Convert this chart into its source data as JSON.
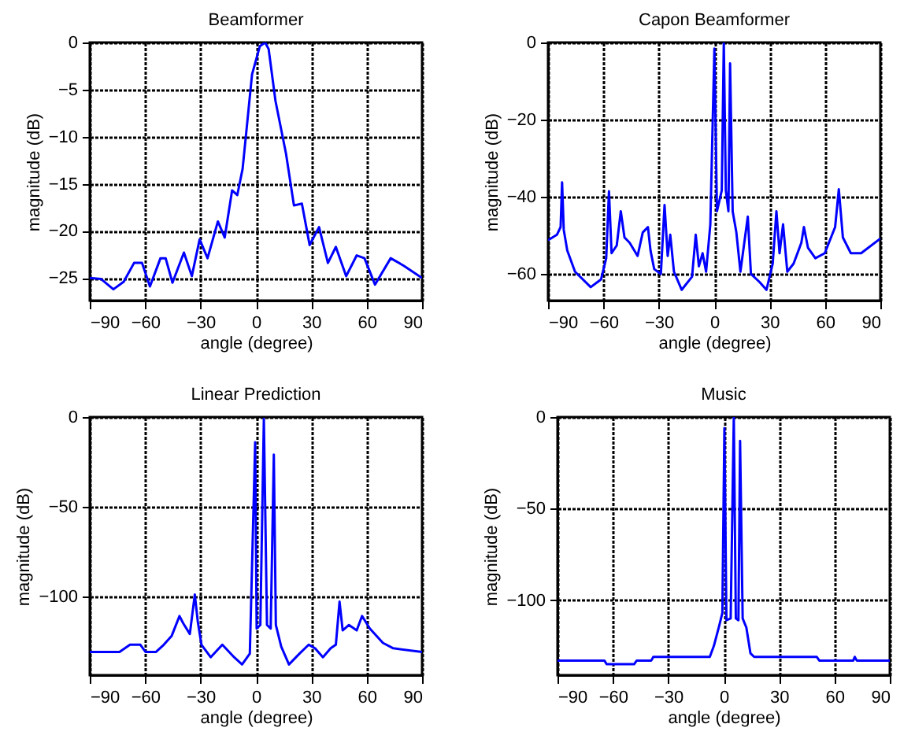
{
  "chart_data": [
    {
      "type": "line",
      "title": "Beamformer",
      "xlabel": "angle (degree)",
      "ylabel": "magnitude (dB)",
      "xlim": [
        -90,
        90
      ],
      "xticks": [
        -90,
        -60,
        -30,
        0,
        30,
        60,
        90
      ],
      "ylim": [
        -27.4,
        0
      ],
      "yticks": [
        -25,
        -20,
        -15,
        -10,
        -5,
        0
      ],
      "grid": true,
      "x": [
        -90,
        -84,
        -77.2,
        -71.6,
        -66,
        -61.7,
        -57.4,
        -51.7,
        -48.9,
        -45.2,
        -39,
        -34.7,
        -30.5,
        -26.2,
        -20.6,
        -16.9,
        -12.9,
        -10.1,
        -7.2,
        -4.4,
        -2.1,
        2.1,
        5,
        6.9,
        10.6,
        16.3,
        20.6,
        24.9,
        29.1,
        34.2,
        39,
        43.3,
        48.9,
        54.6,
        58.8,
        64.5,
        73,
        80.1,
        90
      ],
      "series": [
        {
          "color": "#0000ff",
          "values": [
            -25,
            -25.1,
            -26.2,
            -25.4,
            -23.4,
            -23.4,
            -25.9,
            -22.9,
            -22.9,
            -25.5,
            -22.3,
            -24.8,
            -20.9,
            -22.9,
            -19,
            -20.7,
            -15.7,
            -16.2,
            -13.4,
            -7.9,
            -3.4,
            -0.4,
            0,
            -0.7,
            -6.2,
            -11.8,
            -17.3,
            -17.1,
            -21.5,
            -19.6,
            -23.4,
            -21.7,
            -24.8,
            -22.6,
            -22.9,
            -25.7,
            -22.9,
            -23.7,
            -25
          ]
        }
      ]
    },
    {
      "type": "line",
      "title": "Capon Beamformer",
      "xlabel": "angle (degree)",
      "ylabel": "magnitude (dB)",
      "xlim": [
        -90,
        90
      ],
      "xticks": [
        -90,
        -60,
        -30,
        0,
        30,
        60,
        90
      ],
      "ylim": [
        -67,
        0
      ],
      "yticks": [
        -60,
        -40,
        -20,
        0
      ],
      "grid": true,
      "x": [
        -90,
        -85.2,
        -83.2,
        -82.4,
        -81.5,
        -79.6,
        -75.4,
        -66.9,
        -61.3,
        -58.5,
        -57,
        -55.6,
        -52.8,
        -50.6,
        -48.6,
        -45.8,
        -41.5,
        -38.7,
        -35.9,
        -34.5,
        -32.5,
        -28.9,
        -26.9,
        -25.2,
        -23.8,
        -21.8,
        -17.6,
        -12,
        -10,
        -8.3,
        -6.3,
        -4.4,
        -2.1,
        0.1,
        1.5,
        4.1,
        5.2,
        6.3,
        7.7,
        8.6,
        10,
        12,
        14.2,
        18.2,
        19.9,
        24.6,
        28.3,
        31.7,
        33.7,
        35.4,
        37.3,
        39.6,
        43,
        47.2,
        48.6,
        50.8,
        54.8,
        59.9,
        65.5,
        67.5,
        69.7,
        74,
        79.6,
        90
      ],
      "series": [
        {
          "color": "#0000ff",
          "values": [
            -51.3,
            -49.9,
            -47.9,
            -36.3,
            -48.6,
            -54,
            -59.5,
            -63.5,
            -61.5,
            -56,
            -38.6,
            -54.7,
            -52.7,
            -43.8,
            -50.6,
            -52,
            -55.4,
            -49.3,
            -47.9,
            -54,
            -58.8,
            -60.1,
            -42.2,
            -55.4,
            -49.9,
            -59.5,
            -64.2,
            -60.8,
            -49.9,
            -58.1,
            -54.7,
            -59.5,
            -47.2,
            -1.6,
            -43.8,
            -38.4,
            0,
            -38.4,
            -43.8,
            -5.4,
            -43.8,
            -49.3,
            -59.5,
            -45.2,
            -60.1,
            -62.2,
            -64.2,
            -57.4,
            -43.8,
            -54.7,
            -47.2,
            -59.5,
            -57.4,
            -52,
            -47.9,
            -53.3,
            -56,
            -54.7,
            -47.9,
            -38.1,
            -50.6,
            -54.7,
            -54.7,
            -50.9
          ]
        }
      ]
    },
    {
      "type": "line",
      "title": "Linear Prediction",
      "xlabel": "angle (degree)",
      "ylabel": "magnitude (dB)",
      "xlim": [
        -90,
        90
      ],
      "xticks": [
        -90,
        -60,
        -30,
        0,
        30,
        60,
        90
      ],
      "ylim": [
        -144,
        0
      ],
      "yticks": [
        -100,
        -50,
        0
      ],
      "grid": true,
      "x": [
        -90,
        -73.9,
        -68.2,
        -62.6,
        -59.8,
        -54.1,
        -49.9,
        -45.6,
        -41.4,
        -39.4,
        -35.8,
        -33.1,
        -31.5,
        -29.5,
        -24.5,
        -18.2,
        -11.8,
        -7.5,
        -3.3,
        -0.4,
        0.4,
        2.4,
        4.3,
        6,
        8,
        9.7,
        10.8,
        13.7,
        17.9,
        23.6,
        28.6,
        32,
        36.3,
        40.5,
        43.3,
        45.3,
        47,
        50.4,
        54.6,
        57.5,
        61.7,
        68.8,
        74.4,
        90
      ],
      "series": [
        {
          "color": "#0000ff",
          "values": [
            -131,
            -131,
            -127,
            -127,
            -131,
            -131,
            -127,
            -122,
            -111,
            -115,
            -121,
            -99,
            -114,
            -127,
            -134,
            -127,
            -134,
            -138,
            -132,
            -14,
            -118,
            -116,
            -1,
            -116,
            -118,
            -21,
            -116,
            -128,
            -138,
            -132,
            -127,
            -129,
            -134,
            -129,
            -127,
            -103,
            -119,
            -116,
            -119,
            -111,
            -118,
            -126,
            -129,
            -131
          ]
        }
      ]
    },
    {
      "type": "line",
      "title": "Music",
      "xlabel": "angle (degree)",
      "ylabel": "magnitude (dB)",
      "xlim": [
        -90,
        90
      ],
      "xticks": [
        -90,
        -60,
        -30,
        0,
        30,
        60,
        90
      ],
      "ylim": [
        -141,
        0
      ],
      "yticks": [
        -100,
        -50,
        0
      ],
      "grid": true,
      "x": [
        -90,
        -64.6,
        -63.4,
        -48.5,
        -47.1,
        -39.2,
        -38.1,
        -7.5,
        -5.3,
        -2.4,
        -0.7,
        0.4,
        1.5,
        3.8,
        5.5,
        6.6,
        8,
        8.9,
        10.3,
        12.3,
        14.5,
        16.5,
        50.4,
        51.8,
        70.2,
        71,
        72.1,
        90
      ],
      "series": [
        {
          "color": "#0000ff",
          "values": [
            -133,
            -133,
            -135,
            -135,
            -133,
            -133,
            -131,
            -131,
            -125,
            -114,
            -107,
            -6,
            -111,
            -110,
            0,
            -110,
            -111,
            -13,
            -110,
            -115,
            -129,
            -131,
            -131,
            -133,
            -133,
            -131,
            -133,
            -133
          ]
        }
      ]
    }
  ]
}
